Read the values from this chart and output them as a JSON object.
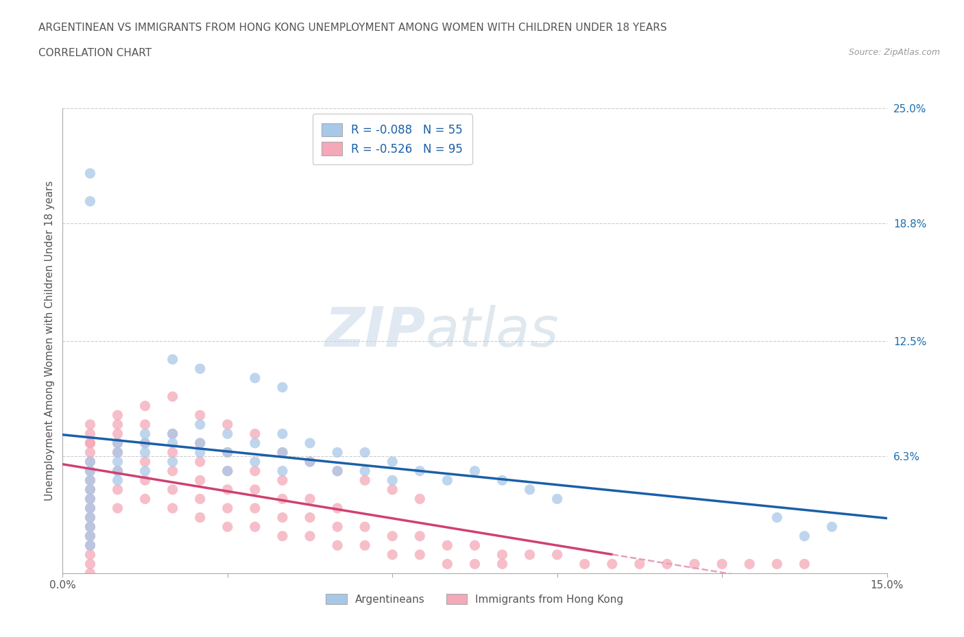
{
  "title_line1": "ARGENTINEAN VS IMMIGRANTS FROM HONG KONG UNEMPLOYMENT AMONG WOMEN WITH CHILDREN UNDER 18 YEARS",
  "title_line2": "CORRELATION CHART",
  "source_text": "Source: ZipAtlas.com",
  "ylabel": "Unemployment Among Women with Children Under 18 years",
  "xlim": [
    0.0,
    0.15
  ],
  "ylim": [
    0.0,
    0.25
  ],
  "xtick_positions": [
    0.0,
    0.03,
    0.06,
    0.09,
    0.12,
    0.15
  ],
  "xticklabels": [
    "0.0%",
    "",
    "",
    "",
    "",
    "15.0%"
  ],
  "ytick_labels_right": [
    "6.3%",
    "12.5%",
    "18.8%",
    "25.0%"
  ],
  "ytick_values_right": [
    0.063,
    0.125,
    0.188,
    0.25
  ],
  "blue_color": "#a8c8e8",
  "pink_color": "#f4a8b8",
  "trendline_blue": "#1a5fa8",
  "trendline_pink": "#d04070",
  "trendline_pink_dash": "#e8a0b8",
  "R_blue": -0.088,
  "N_blue": 55,
  "R_pink": -0.526,
  "N_pink": 95,
  "legend_label_blue": "Argentineans",
  "legend_label_pink": "Immigrants from Hong Kong",
  "watermark_zip": "ZIP",
  "watermark_atlas": "atlas",
  "blue_scatter_x": [
    0.005,
    0.005,
    0.005,
    0.005,
    0.005,
    0.005,
    0.005,
    0.005,
    0.005,
    0.005,
    0.01,
    0.01,
    0.01,
    0.01,
    0.01,
    0.015,
    0.015,
    0.015,
    0.015,
    0.02,
    0.02,
    0.02,
    0.025,
    0.025,
    0.025,
    0.03,
    0.03,
    0.03,
    0.035,
    0.035,
    0.04,
    0.04,
    0.04,
    0.045,
    0.045,
    0.05,
    0.05,
    0.055,
    0.055,
    0.06,
    0.06,
    0.065,
    0.07,
    0.075,
    0.08,
    0.085,
    0.09,
    0.035,
    0.04,
    0.02,
    0.025,
    0.005,
    0.005,
    0.13,
    0.14,
    0.135
  ],
  "blue_scatter_y": [
    0.06,
    0.055,
    0.05,
    0.045,
    0.04,
    0.035,
    0.03,
    0.025,
    0.02,
    0.015,
    0.07,
    0.065,
    0.06,
    0.055,
    0.05,
    0.075,
    0.07,
    0.065,
    0.055,
    0.075,
    0.07,
    0.06,
    0.08,
    0.07,
    0.065,
    0.075,
    0.065,
    0.055,
    0.07,
    0.06,
    0.075,
    0.065,
    0.055,
    0.07,
    0.06,
    0.065,
    0.055,
    0.065,
    0.055,
    0.06,
    0.05,
    0.055,
    0.05,
    0.055,
    0.05,
    0.045,
    0.04,
    0.105,
    0.1,
    0.115,
    0.11,
    0.215,
    0.2,
    0.03,
    0.025,
    0.02
  ],
  "pink_scatter_x": [
    0.005,
    0.005,
    0.005,
    0.005,
    0.005,
    0.005,
    0.005,
    0.005,
    0.005,
    0.005,
    0.005,
    0.005,
    0.005,
    0.005,
    0.005,
    0.01,
    0.01,
    0.01,
    0.01,
    0.01,
    0.01,
    0.015,
    0.015,
    0.015,
    0.015,
    0.015,
    0.02,
    0.02,
    0.02,
    0.02,
    0.02,
    0.025,
    0.025,
    0.025,
    0.025,
    0.025,
    0.03,
    0.03,
    0.03,
    0.03,
    0.03,
    0.035,
    0.035,
    0.035,
    0.035,
    0.04,
    0.04,
    0.04,
    0.04,
    0.045,
    0.045,
    0.045,
    0.05,
    0.05,
    0.05,
    0.055,
    0.055,
    0.06,
    0.06,
    0.065,
    0.065,
    0.07,
    0.07,
    0.075,
    0.075,
    0.08,
    0.08,
    0.085,
    0.09,
    0.095,
    0.1,
    0.105,
    0.11,
    0.115,
    0.12,
    0.125,
    0.13,
    0.135,
    0.005,
    0.005,
    0.005,
    0.01,
    0.01,
    0.015,
    0.02,
    0.025,
    0.03,
    0.035,
    0.04,
    0.045,
    0.05,
    0.055,
    0.06,
    0.065
  ],
  "pink_scatter_y": [
    0.07,
    0.065,
    0.06,
    0.055,
    0.05,
    0.045,
    0.04,
    0.035,
    0.03,
    0.025,
    0.02,
    0.015,
    0.01,
    0.005,
    0.0,
    0.075,
    0.07,
    0.065,
    0.055,
    0.045,
    0.035,
    0.08,
    0.07,
    0.06,
    0.05,
    0.04,
    0.075,
    0.065,
    0.055,
    0.045,
    0.035,
    0.07,
    0.06,
    0.05,
    0.04,
    0.03,
    0.065,
    0.055,
    0.045,
    0.035,
    0.025,
    0.055,
    0.045,
    0.035,
    0.025,
    0.05,
    0.04,
    0.03,
    0.02,
    0.04,
    0.03,
    0.02,
    0.035,
    0.025,
    0.015,
    0.025,
    0.015,
    0.02,
    0.01,
    0.02,
    0.01,
    0.015,
    0.005,
    0.015,
    0.005,
    0.01,
    0.005,
    0.01,
    0.01,
    0.005,
    0.005,
    0.005,
    0.005,
    0.005,
    0.005,
    0.005,
    0.005,
    0.005,
    0.08,
    0.075,
    0.07,
    0.085,
    0.08,
    0.09,
    0.095,
    0.085,
    0.08,
    0.075,
    0.065,
    0.06,
    0.055,
    0.05,
    0.045,
    0.04
  ]
}
